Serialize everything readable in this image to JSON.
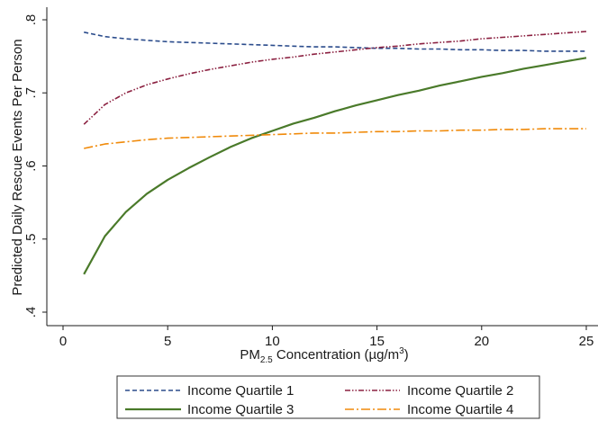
{
  "chart_data": {
    "type": "line",
    "xlabel_main": "PM",
    "xlabel_sub": "2.5",
    "xlabel_rest": " Concentration (µg/m",
    "xlabel_sup": "3",
    "xlabel_close": ")",
    "ylabel": "Predicted Daily Rescue Events Per Person",
    "xlim": [
      0,
      25
    ],
    "ylim": [
      0.4,
      0.8
    ],
    "xticks": [
      {
        "value": 0,
        "label": "0"
      },
      {
        "value": 5,
        "label": "5"
      },
      {
        "value": 10,
        "label": "10"
      },
      {
        "value": 15,
        "label": "15"
      },
      {
        "value": 20,
        "label": "20"
      },
      {
        "value": 25,
        "label": "25"
      }
    ],
    "yticks": [
      {
        "value": 0.4,
        "label": ".4"
      },
      {
        "value": 0.5,
        "label": ".5"
      },
      {
        "value": 0.6,
        "label": ".6"
      },
      {
        "value": 0.7,
        "label": ".7"
      },
      {
        "value": 0.8,
        "label": ".8"
      }
    ],
    "grid": false,
    "legend_position": "bottom",
    "series": [
      {
        "name": "Income Quartile 1",
        "color": "#2b4c8c",
        "dash": "dashed",
        "x": [
          1,
          2,
          3,
          4,
          5,
          6,
          7,
          8,
          9,
          10,
          11,
          12,
          13,
          14,
          15,
          16,
          17,
          18,
          19,
          20,
          21,
          22,
          23,
          24,
          25
        ],
        "y": [
          0.783,
          0.777,
          0.774,
          0.772,
          0.77,
          0.769,
          0.768,
          0.767,
          0.766,
          0.765,
          0.764,
          0.763,
          0.763,
          0.762,
          0.761,
          0.761,
          0.76,
          0.76,
          0.759,
          0.759,
          0.758,
          0.758,
          0.757,
          0.757,
          0.757
        ]
      },
      {
        "name": "Income Quartile 2",
        "color": "#8b2040",
        "dash": "dashdotdot",
        "x": [
          1,
          2,
          3,
          4,
          5,
          6,
          7,
          8,
          9,
          10,
          11,
          12,
          13,
          14,
          15,
          16,
          17,
          18,
          19,
          20,
          21,
          22,
          23,
          24,
          25
        ],
        "y": [
          0.657,
          0.684,
          0.7,
          0.711,
          0.719,
          0.726,
          0.732,
          0.737,
          0.742,
          0.746,
          0.749,
          0.753,
          0.756,
          0.759,
          0.762,
          0.764,
          0.767,
          0.769,
          0.771,
          0.774,
          0.776,
          0.778,
          0.78,
          0.782,
          0.784
        ]
      },
      {
        "name": "Income Quartile 3",
        "color": "#4a7a2a",
        "dash": "solid",
        "x": [
          1,
          2,
          3,
          4,
          5,
          6,
          7,
          8,
          9,
          10,
          11,
          12,
          13,
          14,
          15,
          16,
          17,
          18,
          19,
          20,
          21,
          22,
          23,
          24,
          25
        ],
        "y": [
          0.452,
          0.504,
          0.537,
          0.562,
          0.581,
          0.597,
          0.612,
          0.626,
          0.638,
          0.648,
          0.658,
          0.666,
          0.675,
          0.683,
          0.69,
          0.697,
          0.703,
          0.71,
          0.716,
          0.722,
          0.727,
          0.733,
          0.738,
          0.743,
          0.748
        ]
      },
      {
        "name": "Income Quartile 4",
        "color": "#f08a0a",
        "dash": "dashdot",
        "x": [
          1,
          2,
          3,
          4,
          5,
          6,
          7,
          8,
          9,
          10,
          11,
          12,
          13,
          14,
          15,
          16,
          17,
          18,
          19,
          20,
          21,
          22,
          23,
          24,
          25
        ],
        "y": [
          0.624,
          0.63,
          0.633,
          0.636,
          0.638,
          0.639,
          0.64,
          0.641,
          0.642,
          0.643,
          0.644,
          0.645,
          0.645,
          0.646,
          0.647,
          0.647,
          0.648,
          0.648,
          0.649,
          0.649,
          0.65,
          0.65,
          0.651,
          0.651,
          0.651
        ]
      }
    ]
  }
}
